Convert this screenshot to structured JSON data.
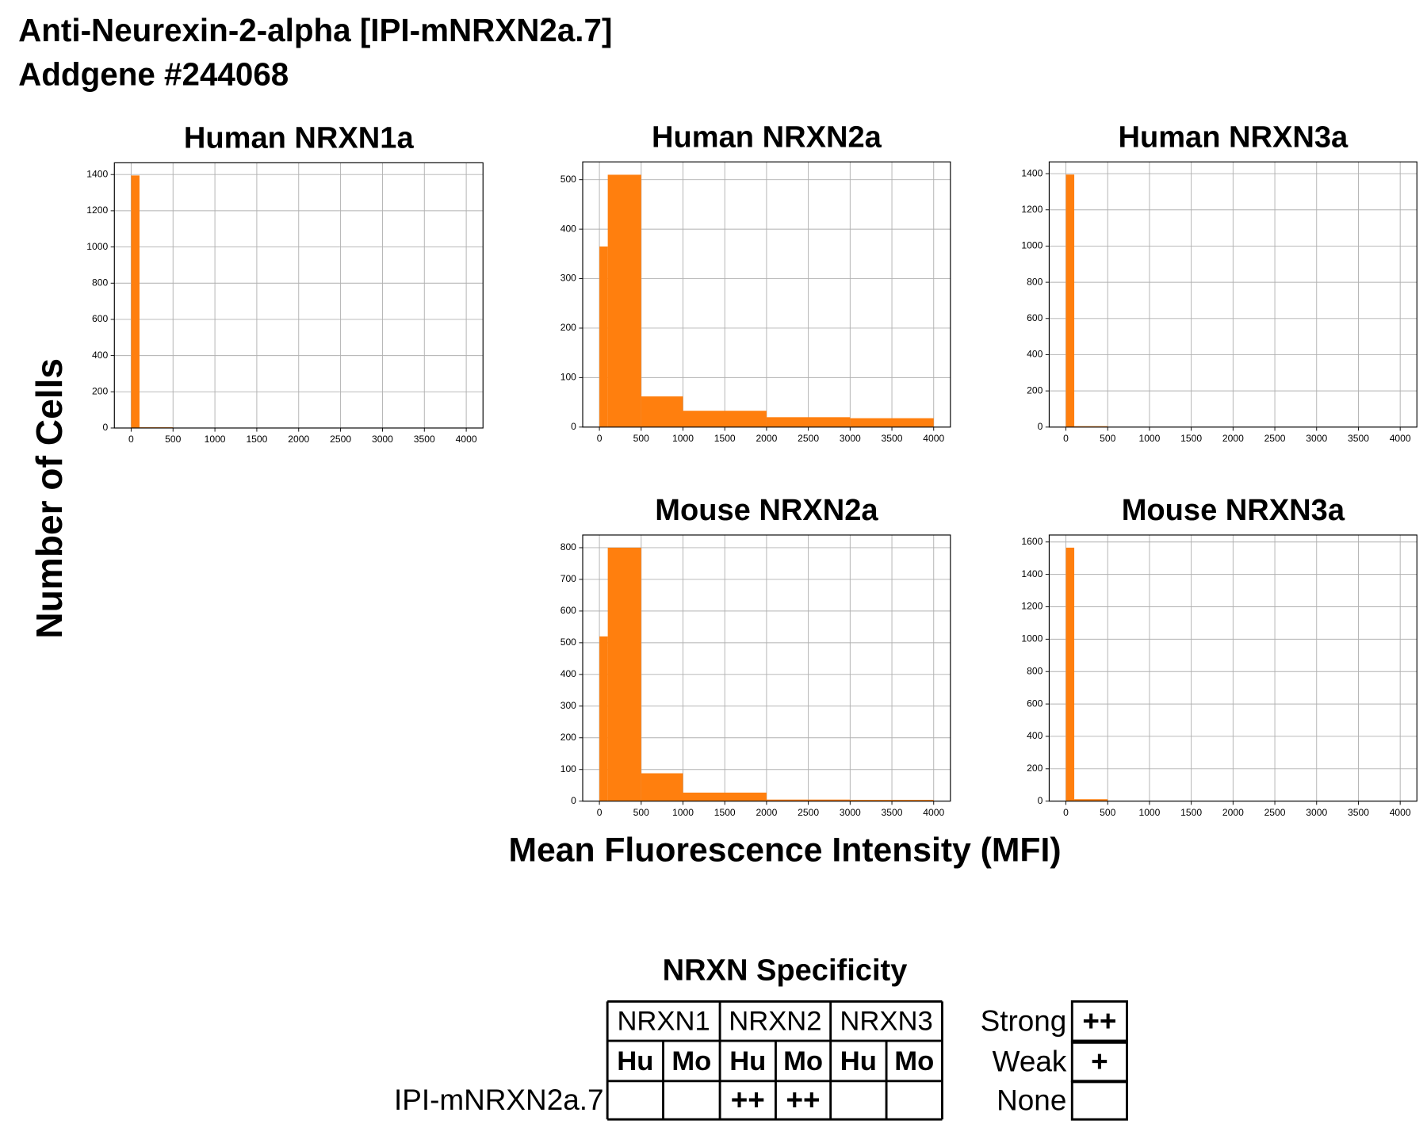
{
  "header": {
    "title": "Anti-Neurexin-2-alpha [IPI-mNRXN2a.7]",
    "subtitle": "Addgene #244068"
  },
  "y_label": "Number of Cells",
  "x_label": "Mean Fluorescence Intensity (MFI)",
  "chart_data": [
    {
      "type": "histogram",
      "title": "Human NRXN1a",
      "bins": [
        0,
        100,
        500,
        1000,
        2000,
        3000,
        4000
      ],
      "values": [
        1395,
        4,
        0,
        0,
        0,
        0
      ],
      "color": "#ff7f0e",
      "xlim": [
        -200,
        4200
      ],
      "ylim": [
        0,
        1465
      ],
      "xticks": [
        0,
        500,
        1000,
        1500,
        2000,
        2500,
        3000,
        3500,
        4000
      ],
      "yticks": [
        0,
        200,
        400,
        600,
        800,
        1000,
        1200,
        1400
      ],
      "grid": true
    },
    {
      "type": "histogram",
      "title": "Human NRXN2a",
      "bins": [
        0,
        100,
        500,
        1000,
        2000,
        3000,
        4000
      ],
      "values": [
        365,
        510,
        62,
        33,
        20,
        18
      ],
      "color": "#ff7f0e",
      "xlim": [
        -200,
        4200
      ],
      "ylim": [
        0,
        536
      ],
      "xticks": [
        0,
        500,
        1000,
        1500,
        2000,
        2500,
        3000,
        3500,
        4000
      ],
      "yticks": [
        0,
        100,
        200,
        300,
        400,
        500
      ],
      "grid": true
    },
    {
      "type": "histogram",
      "title": "Human NRXN3a",
      "bins": [
        0,
        100,
        500,
        1000,
        2000,
        3000,
        4000
      ],
      "values": [
        1395,
        5,
        0,
        0,
        0,
        0
      ],
      "color": "#ff7f0e",
      "xlim": [
        -200,
        4200
      ],
      "ylim": [
        0,
        1465
      ],
      "xticks": [
        0,
        500,
        1000,
        1500,
        2000,
        2500,
        3000,
        3500,
        4000
      ],
      "yticks": [
        0,
        200,
        400,
        600,
        800,
        1000,
        1200,
        1400
      ],
      "grid": true
    },
    {
      "type": "histogram",
      "title": "Mouse NRXN2a",
      "bins": [
        0,
        100,
        500,
        1000,
        2000,
        3000,
        4000
      ],
      "values": [
        520,
        800,
        88,
        27,
        5,
        4
      ],
      "color": "#ff7f0e",
      "xlim": [
        -200,
        4200
      ],
      "ylim": [
        0,
        840
      ],
      "xticks": [
        0,
        500,
        1000,
        1500,
        2000,
        2500,
        3000,
        3500,
        4000
      ],
      "yticks": [
        0,
        100,
        200,
        300,
        400,
        500,
        600,
        700,
        800
      ],
      "grid": true
    },
    {
      "type": "histogram",
      "title": "Mouse NRXN3a",
      "bins": [
        0,
        100,
        500,
        1000,
        2000,
        3000,
        4000
      ],
      "values": [
        1565,
        12,
        0,
        0,
        0,
        0
      ],
      "color": "#ff7f0e",
      "xlim": [
        -200,
        4200
      ],
      "ylim": [
        0,
        1643
      ],
      "xticks": [
        0,
        500,
        1000,
        1500,
        2000,
        2500,
        3000,
        3500,
        4000
      ],
      "yticks": [
        0,
        200,
        400,
        600,
        800,
        1000,
        1200,
        1400,
        1600
      ],
      "grid": true
    }
  ],
  "table": {
    "title": "NRXN Specificity",
    "groups": [
      "NRXN1",
      "NRXN2",
      "NRXN3"
    ],
    "species": [
      "Hu",
      "Mo",
      "Hu",
      "Mo",
      "Hu",
      "Mo"
    ],
    "rows": [
      {
        "label": "IPI-mNRXN2a.7",
        "cells": [
          null,
          null,
          "++",
          "++",
          null,
          null
        ]
      }
    ]
  },
  "legend": [
    {
      "label": "Strong",
      "symbol": "++"
    },
    {
      "label": "Weak",
      "symbol": "+"
    },
    {
      "label": "None"
    }
  ]
}
